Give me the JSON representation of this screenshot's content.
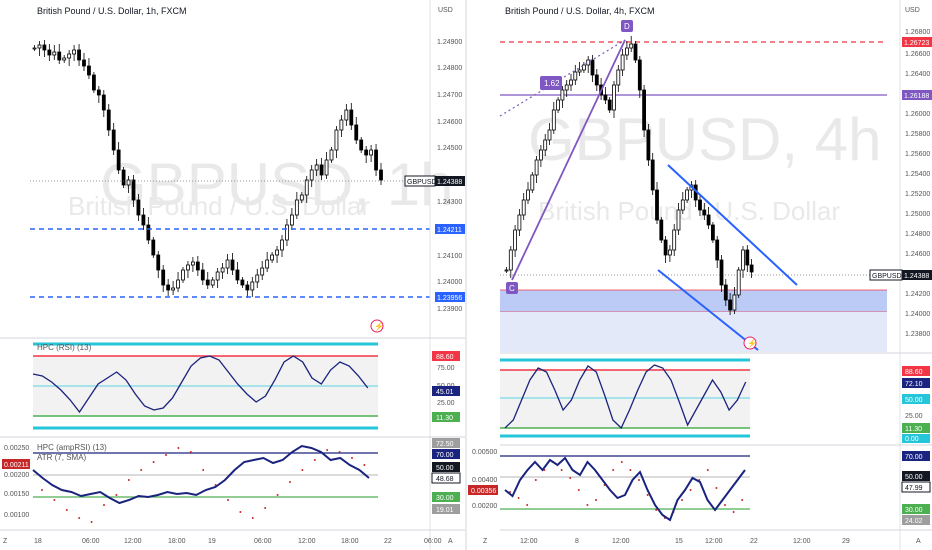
{
  "colors": {
    "up": "#ffffff",
    "down": "#000000",
    "wick": "#000000",
    "grid": "#f0f3fa",
    "axis_text": "#555555",
    "blue_line": "#2962ff",
    "red": "#f23645",
    "purple": "#7e57c2",
    "teal": "#26c6da",
    "green": "#4caf50",
    "navy": "#1a237e",
    "zone_fill": "#bbcbf5",
    "zone_light": "#e3e9f9",
    "watermark": "#e9e9e9"
  },
  "left": {
    "title": "British Pound / U.S. Dollar, 1h, FXCM",
    "watermark": "GBPUSD, 1h",
    "watermark_sub": "British Pound / U.S. Dollar",
    "scale_label": "USD",
    "price_ticks": [
      "1.24900",
      "1.24800",
      "1.24700",
      "1.24600",
      "1.24500",
      "1.24300",
      "1.24100",
      "1.24000",
      "1.23900"
    ],
    "current_label": "GBPUSD",
    "current_value": "1.24388",
    "level_1": "1.24211",
    "level_2": "1.23956",
    "rsi_title": "HPC (RSI) (13)",
    "rsi_ticks": [
      "75.00",
      "50.00",
      "25.00"
    ],
    "rsi_badges": [
      "88.60",
      "45.01",
      "11.30"
    ],
    "lower_title_1": "HPC (ampRSI) (13)",
    "lower_title_2": "ATR (7, SMA)",
    "atr_ticks": [
      "0.00250",
      "0.00200",
      "0.00150",
      "0.00100"
    ],
    "atr_badges": [
      "72.50",
      "70.00",
      "50.00",
      "48.68",
      "30.00",
      "19.01"
    ],
    "atr_current": "0.00211",
    "time_ticks": [
      "18",
      "06:00",
      "12:00",
      "18:00",
      "19",
      "06:00",
      "12:00",
      "18:00",
      "22",
      "06:00"
    ],
    "corner_left": "Z",
    "corner_right": "A"
  },
  "right": {
    "title": "British Pound / U.S. Dollar, 4h, FXCM",
    "watermark": "GBPUSD, 4h",
    "watermark_sub": "British Pound / U.S. Dollar",
    "scale_label": "USD",
    "price_ticks": [
      "1.26800",
      "1.26600",
      "1.26400",
      "1.26200",
      "1.26000",
      "1.25800",
      "1.25600",
      "1.25400",
      "1.25200",
      "1.25000",
      "1.24800",
      "1.24600",
      "1.24200",
      "1.24000",
      "1.23800"
    ],
    "level_top": "1.26723",
    "level_mid": "1.26188",
    "current_label": "GBPUSD",
    "current_value": "1.24388",
    "point_c": "C",
    "point_d": "D",
    "ratio": "1.62",
    "rsi_badges": [
      "88.60",
      "72.10",
      "50.00",
      "25.00",
      "11.30",
      "0.00"
    ],
    "atr_ticks": [
      "0.00500",
      "0.00400",
      "0.00200"
    ],
    "atr_badges": [
      "70.00",
      "50.00",
      "47.99",
      "30.00",
      "24.02"
    ],
    "atr_current": "0.00356",
    "time_ticks": [
      "12:00",
      "8",
      "12:00",
      "15",
      "12:00",
      "22",
      "12:00",
      "29"
    ],
    "corner_left": "Z",
    "corner_right": "A"
  },
  "chart_data": [
    {
      "type": "line",
      "title": "British Pound / U.S. Dollar, 1h, FXCM",
      "x": [
        "18",
        "06:00",
        "12:00",
        "18:00",
        "19",
        "06:00",
        "12:00",
        "18:00",
        "22"
      ],
      "series": [
        {
          "name": "GBPUSD",
          "values": [
            1.249,
            1.2475,
            1.244,
            1.2398,
            1.2405,
            1.24,
            1.243,
            1.247,
            1.2439
          ]
        }
      ],
      "ylim": [
        1.2385,
        1.25
      ]
    },
    {
      "type": "line",
      "title": "British Pound / U.S. Dollar, 4h, FXCM",
      "x": [
        "12:00",
        "8",
        "12:00",
        "15",
        "12:00",
        "22"
      ],
      "series": [
        {
          "name": "GBPUSD",
          "values": [
            1.244,
            1.262,
            1.266,
            1.248,
            1.241,
            1.2439
          ]
        }
      ],
      "ylim": [
        1.237,
        1.268
      ]
    }
  ]
}
